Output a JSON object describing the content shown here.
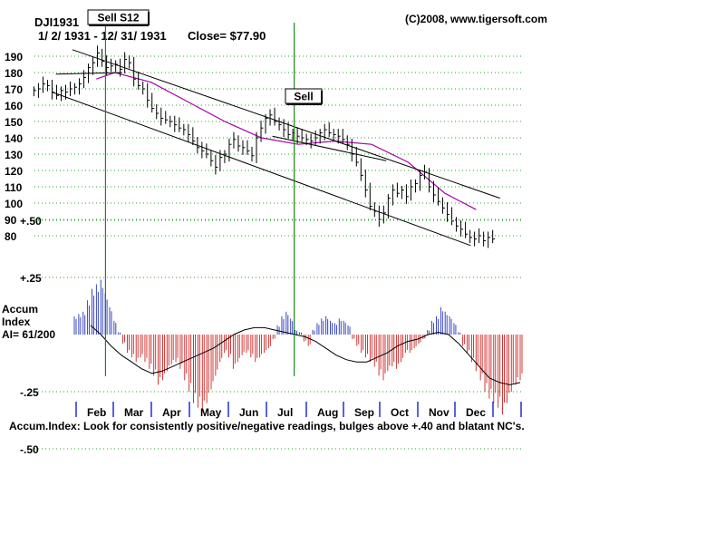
{
  "chart_data": {
    "type": "ohlc",
    "ticker": "DJI1931",
    "date_range": "1/ 2/ 1931  -  12/ 31/ 1931",
    "close_label": "Close= $77.90",
    "copyright": "(C)2008, www.tigersoft.com",
    "price_axis": {
      "ticks": [
        190,
        180,
        170,
        160,
        150,
        140,
        130,
        120,
        110,
        100,
        90,
        80
      ],
      "ylim": [
        70,
        197
      ]
    },
    "months": [
      "Feb",
      "Mar",
      "Apr",
      "May",
      "Jun",
      "Jul",
      "Aug",
      "Sep",
      "Oct",
      "Nov",
      "Dec"
    ],
    "signals": [
      {
        "label": "Sell S12",
        "month_position": 0.06
      },
      {
        "label": "Sell",
        "month_position": 5.3
      }
    ],
    "closes": [
      169,
      170,
      173,
      172,
      168,
      166,
      169,
      168,
      170,
      171,
      173,
      177,
      183,
      186,
      192,
      187,
      183,
      184,
      185,
      182,
      188,
      186,
      176,
      172,
      170,
      163,
      158,
      155,
      152,
      151,
      150,
      148,
      146,
      145,
      142,
      138,
      134,
      132,
      130,
      126,
      122,
      128,
      130,
      136,
      139,
      135,
      134,
      132,
      129,
      140,
      146,
      152,
      154,
      150,
      148,
      145,
      142,
      143,
      141,
      140,
      139,
      138,
      140,
      143,
      145,
      143,
      142,
      141,
      139,
      136,
      130,
      125,
      117,
      108,
      98,
      95,
      90,
      94,
      103,
      108,
      106,
      108,
      104,
      110,
      112,
      117,
      119,
      110,
      105,
      101,
      97,
      93,
      89,
      86,
      84,
      81,
      79,
      78,
      80,
      77,
      79,
      78
    ],
    "moving_average": {
      "color": "#aa00aa",
      "points": [
        [
          0.5,
          176
        ],
        [
          1,
          180
        ],
        [
          2,
          174
        ],
        [
          3,
          162
        ],
        [
          4,
          150
        ],
        [
          5,
          140
        ],
        [
          6,
          136
        ],
        [
          7,
          138
        ],
        [
          8,
          136
        ],
        [
          9,
          125
        ],
        [
          10,
          106
        ],
        [
          10.85,
          96
        ]
      ]
    },
    "channel_lines": [
      {
        "from": [
          -0.7,
          168
        ],
        "to": [
          10.7,
          74
        ]
      },
      {
        "from": [
          -0.15,
          194
        ],
        "to": [
          11.5,
          103
        ]
      },
      {
        "from": [
          5.3,
          141
        ],
        "to": [
          8.4,
          126
        ]
      },
      {
        "from": [
          -0.6,
          179
        ],
        "to": [
          1.2,
          180
        ]
      }
    ],
    "accum": {
      "title_line1": "Accum",
      "title_line2": "Index",
      "ai_label": "AI= 61/200",
      "ticks": [
        "+.50",
        "+.25",
        "-.25",
        "-.50"
      ],
      "tick_values": [
        0.5,
        0.25,
        -0.25,
        -0.5
      ],
      "values": [
        0.08,
        0.09,
        0.1,
        0.15,
        0.2,
        0.22,
        0.24,
        0.18,
        0.12,
        0.06,
        0.01,
        -0.04,
        -0.08,
        -0.1,
        -0.12,
        -0.1,
        -0.12,
        -0.15,
        -0.18,
        -0.22,
        -0.2,
        -0.16,
        -0.13,
        -0.12,
        -0.15,
        -0.2,
        -0.25,
        -0.3,
        -0.32,
        -0.34,
        -0.3,
        -0.24,
        -0.18,
        -0.12,
        -0.08,
        -0.1,
        -0.15,
        -0.12,
        -0.09,
        -0.08,
        -0.1,
        -0.12,
        -0.1,
        -0.08,
        -0.06,
        -0.02,
        0.04,
        0.08,
        0.1,
        0.07,
        0.02,
        0.01,
        -0.03,
        -0.05,
        0.02,
        0.05,
        0.07,
        0.08,
        0.06,
        0.05,
        0.07,
        0.06,
        0.04,
        -0.02,
        -0.05,
        -0.08,
        -0.1,
        -0.12,
        -0.14,
        -0.18,
        -0.2,
        -0.16,
        -0.14,
        -0.15,
        -0.12,
        -0.08,
        -0.08,
        -0.06,
        -0.04,
        -0.02,
        0.02,
        0.06,
        0.08,
        0.12,
        0.1,
        0.08,
        0.05,
        0.01,
        -0.05,
        -0.08,
        -0.12,
        -0.16,
        -0.2,
        -0.25,
        -0.28,
        -0.3,
        -0.32,
        -0.35,
        -0.3,
        -0.25,
        -0.22,
        -0.2
      ],
      "avg": [
        0.04,
        0.0,
        -0.05,
        -0.09,
        -0.12,
        -0.15,
        -0.17,
        -0.16,
        -0.14,
        -0.12,
        -0.1,
        -0.08,
        -0.06,
        -0.03,
        0.0,
        0.02,
        0.03,
        0.03,
        0.02,
        0.01,
        0.0,
        -0.01,
        -0.03,
        -0.06,
        -0.09,
        -0.11,
        -0.12,
        -0.12,
        -0.1,
        -0.08,
        -0.05,
        -0.03,
        -0.02,
        0.0,
        0.01,
        0.0,
        -0.04,
        -0.09,
        -0.14,
        -0.19,
        -0.21,
        -0.22,
        -0.21
      ]
    },
    "footer_note": "Accum.Index: Look for consistently positive/negative readings, bulges above +.40 and blatant NC's."
  }
}
